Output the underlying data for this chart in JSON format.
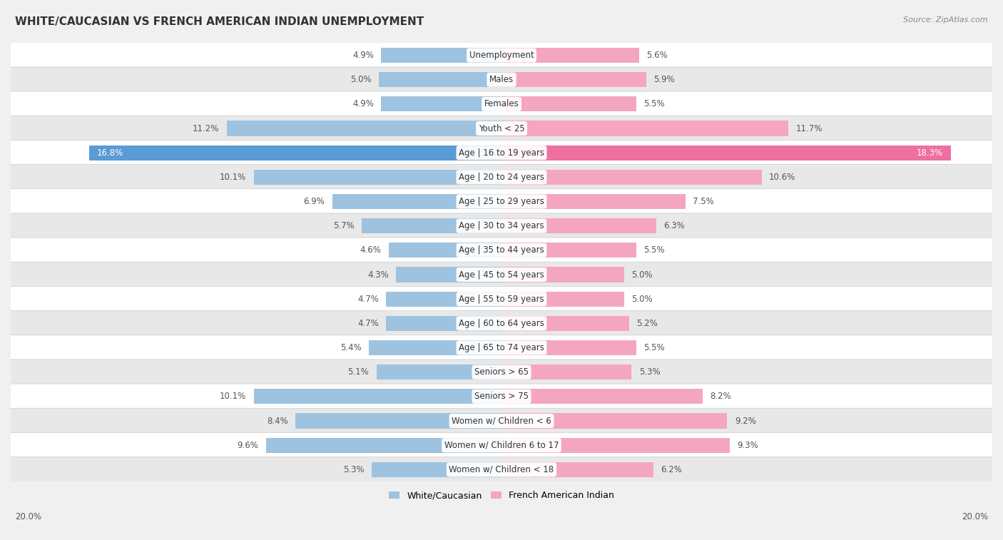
{
  "title": "WHITE/CAUCASIAN VS FRENCH AMERICAN INDIAN UNEMPLOYMENT",
  "source": "Source: ZipAtlas.com",
  "categories": [
    "Unemployment",
    "Males",
    "Females",
    "Youth < 25",
    "Age | 16 to 19 years",
    "Age | 20 to 24 years",
    "Age | 25 to 29 years",
    "Age | 30 to 34 years",
    "Age | 35 to 44 years",
    "Age | 45 to 54 years",
    "Age | 55 to 59 years",
    "Age | 60 to 64 years",
    "Age | 65 to 74 years",
    "Seniors > 65",
    "Seniors > 75",
    "Women w/ Children < 6",
    "Women w/ Children 6 to 17",
    "Women w/ Children < 18"
  ],
  "white_values": [
    4.9,
    5.0,
    4.9,
    11.2,
    16.8,
    10.1,
    6.9,
    5.7,
    4.6,
    4.3,
    4.7,
    4.7,
    5.4,
    5.1,
    10.1,
    8.4,
    9.6,
    5.3
  ],
  "indian_values": [
    5.6,
    5.9,
    5.5,
    11.7,
    18.3,
    10.6,
    7.5,
    6.3,
    5.5,
    5.0,
    5.0,
    5.2,
    5.5,
    5.3,
    8.2,
    9.2,
    9.3,
    6.2
  ],
  "white_color": "#9dc3e0",
  "indian_color": "#f4a6c0",
  "highlight_white_color": "#5a9bd5",
  "highlight_indian_color": "#ee6fa0",
  "xlim": 20.0,
  "bar_height": 0.62,
  "bg_color": "#f0f0f0",
  "row_colors_even": "#ffffff",
  "row_colors_odd": "#e8e8e8",
  "legend_white": "White/Caucasian",
  "legend_indian": "French American Indian",
  "highlight_row": "Age | 16 to 19 years",
  "label_color_normal": "#555555",
  "label_color_highlight": "#ffffff",
  "value_fontsize": 8.5,
  "cat_fontsize": 8.5,
  "title_fontsize": 11
}
